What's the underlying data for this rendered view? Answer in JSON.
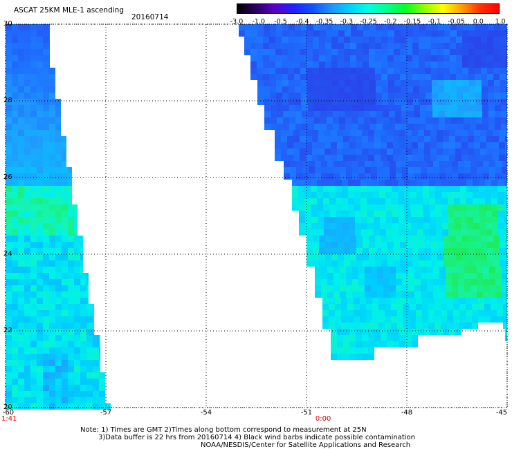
{
  "header": {
    "title": "ASCAT 25KM MLE-1 ascending",
    "date": "20160714"
  },
  "colorbar": {
    "labels": [
      "-3.0",
      "-1.0",
      "-0.5",
      "-0.4",
      "-0.35",
      "-0.3",
      "-0.25",
      "-0.2",
      "-0.15",
      "-0.1",
      "-0.05",
      "0.0",
      "1.0"
    ],
    "colors": [
      "#000000",
      "#2a0060",
      "#5a00c8",
      "#2020ff",
      "#1050ff",
      "#1e90ff",
      "#00d0ff",
      "#00ffe0",
      "#00ff90",
      "#00ff20",
      "#90ff00",
      "#ffff00",
      "#ffa000",
      "#ff3000",
      "#ff0000"
    ]
  },
  "map": {
    "lon_range": [
      -60,
      -45
    ],
    "lat_range": [
      20,
      30
    ],
    "x_ticks": [
      "-60",
      "-57",
      "-54",
      "-51",
      "-48",
      "-45"
    ],
    "y_ticks": [
      "30",
      "28",
      "26",
      "24",
      "22",
      "20"
    ],
    "times": [
      {
        "label": "1:41",
        "lon": -60
      },
      {
        "label": "0:00",
        "lon": -50.5
      }
    ]
  },
  "footer": {
    "line1": "Note: 1) Times are GMT 2)Times along bottom correspond to measurement at 25N",
    "line2": "3)Data buffer is 22 hrs from 20160714 4) Black wind barbs indicate possible contamination",
    "line3": "NOAA/NESDIS/Center for Satellite Applications and Research"
  }
}
